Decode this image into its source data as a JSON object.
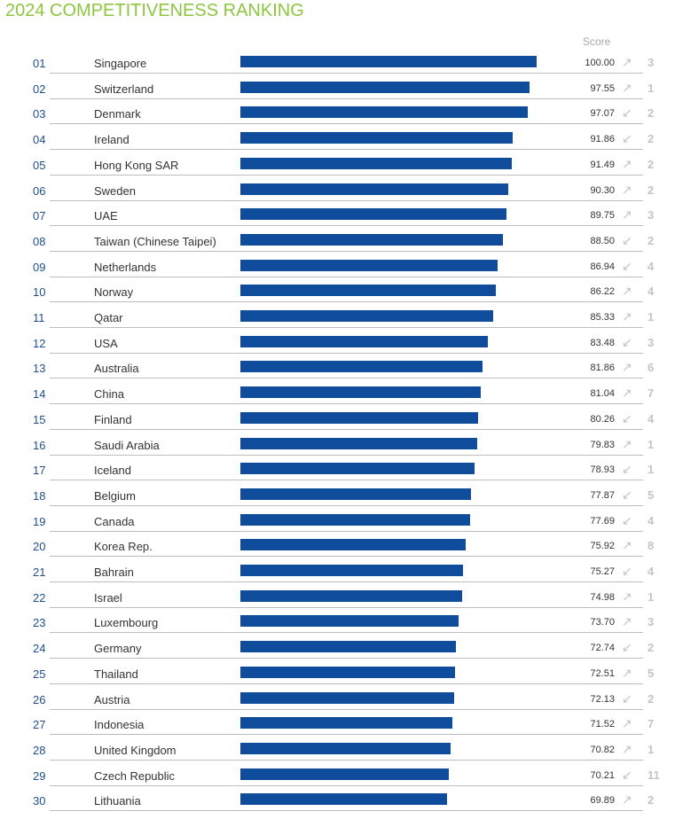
{
  "title": "2024 COMPETITIVENESS RANKING",
  "score_header": "Score",
  "chart_data": {
    "type": "bar",
    "orientation": "horizontal",
    "xlim": [
      0,
      100
    ],
    "rows": [
      {
        "rank": "01",
        "country": "Singapore",
        "score": "100.00",
        "value": 100.0,
        "trend": "up",
        "change": "3"
      },
      {
        "rank": "02",
        "country": "Switzerland",
        "score": "97.55",
        "value": 97.55,
        "trend": "up",
        "change": "1"
      },
      {
        "rank": "03",
        "country": "Denmark",
        "score": "97.07",
        "value": 97.07,
        "trend": "down",
        "change": "2"
      },
      {
        "rank": "04",
        "country": "Ireland",
        "score": "91.86",
        "value": 91.86,
        "trend": "down",
        "change": "2"
      },
      {
        "rank": "05",
        "country": "Hong Kong SAR",
        "score": "91.49",
        "value": 91.49,
        "trend": "up",
        "change": "2"
      },
      {
        "rank": "06",
        "country": "Sweden",
        "score": "90.30",
        "value": 90.3,
        "trend": "up",
        "change": "2"
      },
      {
        "rank": "07",
        "country": "UAE",
        "score": "89.75",
        "value": 89.75,
        "trend": "up",
        "change": "3"
      },
      {
        "rank": "08",
        "country": "Taiwan (Chinese Taipei)",
        "score": "88.50",
        "value": 88.5,
        "trend": "down",
        "change": "2"
      },
      {
        "rank": "09",
        "country": "Netherlands",
        "score": "86.94",
        "value": 86.94,
        "trend": "down",
        "change": "4"
      },
      {
        "rank": "10",
        "country": "Norway",
        "score": "86.22",
        "value": 86.22,
        "trend": "up",
        "change": "4"
      },
      {
        "rank": "11",
        "country": "Qatar",
        "score": "85.33",
        "value": 85.33,
        "trend": "up",
        "change": "1"
      },
      {
        "rank": "12",
        "country": "USA",
        "score": "83.48",
        "value": 83.48,
        "trend": "down",
        "change": "3"
      },
      {
        "rank": "13",
        "country": "Australia",
        "score": "81.86",
        "value": 81.86,
        "trend": "up",
        "change": "6"
      },
      {
        "rank": "14",
        "country": "China",
        "score": "81.04",
        "value": 81.04,
        "trend": "up",
        "change": "7"
      },
      {
        "rank": "15",
        "country": "Finland",
        "score": "80.26",
        "value": 80.26,
        "trend": "down",
        "change": "4"
      },
      {
        "rank": "16",
        "country": "Saudi Arabia",
        "score": "79.83",
        "value": 79.83,
        "trend": "up",
        "change": "1"
      },
      {
        "rank": "17",
        "country": "Iceland",
        "score": "78.93",
        "value": 78.93,
        "trend": "down",
        "change": "1"
      },
      {
        "rank": "18",
        "country": "Belgium",
        "score": "77.87",
        "value": 77.87,
        "trend": "down",
        "change": "5"
      },
      {
        "rank": "19",
        "country": "Canada",
        "score": "77.69",
        "value": 77.69,
        "trend": "down",
        "change": "4"
      },
      {
        "rank": "20",
        "country": "Korea Rep.",
        "score": "75.92",
        "value": 75.92,
        "trend": "up",
        "change": "8"
      },
      {
        "rank": "21",
        "country": "Bahrain",
        "score": "75.27",
        "value": 75.27,
        "trend": "down",
        "change": "4"
      },
      {
        "rank": "22",
        "country": "Israel",
        "score": "74.98",
        "value": 74.98,
        "trend": "up",
        "change": "1"
      },
      {
        "rank": "23",
        "country": "Luxembourg",
        "score": "73.70",
        "value": 73.7,
        "trend": "up",
        "change": "3"
      },
      {
        "rank": "24",
        "country": "Germany",
        "score": "72.74",
        "value": 72.74,
        "trend": "down",
        "change": "2"
      },
      {
        "rank": "25",
        "country": "Thailand",
        "score": "72.51",
        "value": 72.51,
        "trend": "up",
        "change": "5"
      },
      {
        "rank": "26",
        "country": "Austria",
        "score": "72.13",
        "value": 72.13,
        "trend": "down",
        "change": "2"
      },
      {
        "rank": "27",
        "country": "Indonesia",
        "score": "71.52",
        "value": 71.52,
        "trend": "up",
        "change": "7"
      },
      {
        "rank": "28",
        "country": "United Kingdom",
        "score": "70.82",
        "value": 70.82,
        "trend": "up",
        "change": "1"
      },
      {
        "rank": "29",
        "country": "Czech Republic",
        "score": "70.21",
        "value": 70.21,
        "trend": "down",
        "change": "11"
      },
      {
        "rank": "30",
        "country": "Lithuania",
        "score": "69.89",
        "value": 69.89,
        "trend": "up",
        "change": "2"
      }
    ]
  },
  "colors": {
    "title": "#8cc63f",
    "bar": "#0f4c9c",
    "rank": "#1f4e8c",
    "trend": "#c4c4c4"
  }
}
